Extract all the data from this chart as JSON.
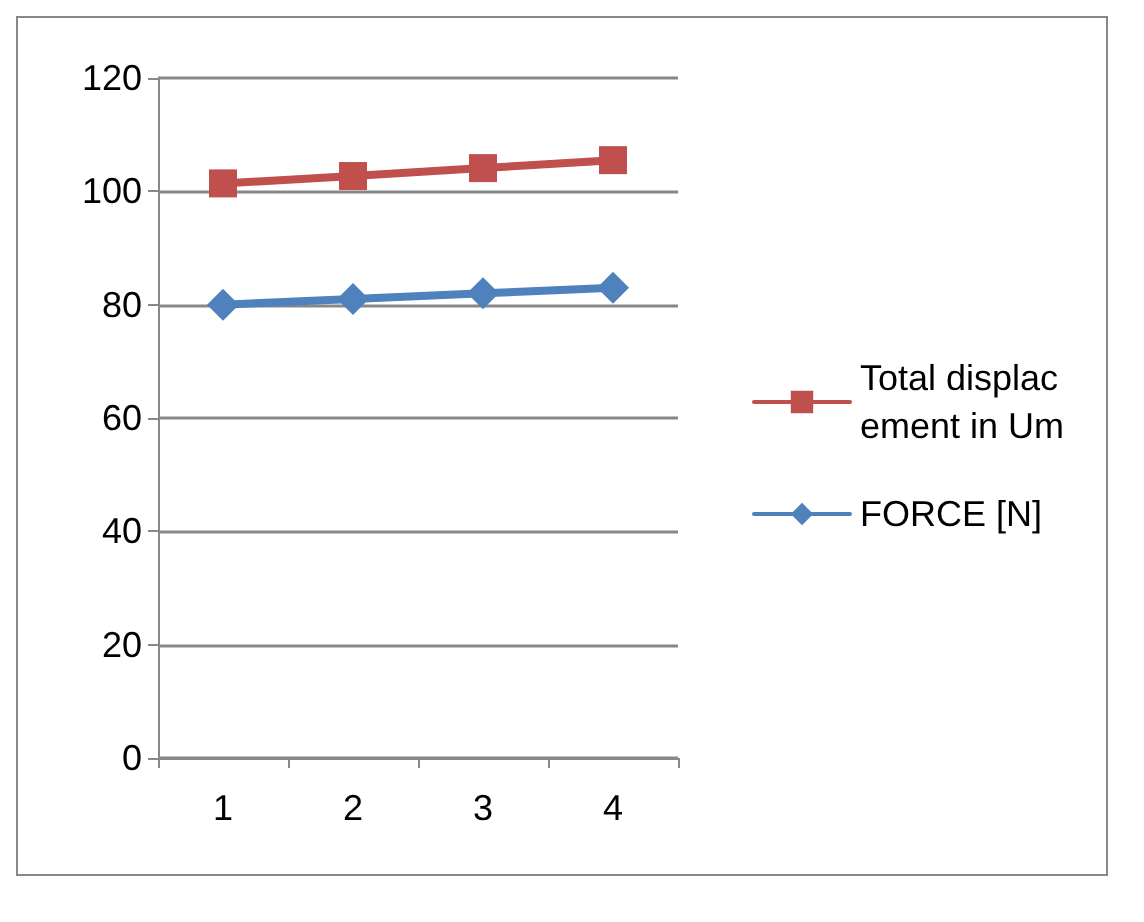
{
  "chart_data": {
    "type": "line",
    "categories": [
      "1",
      "2",
      "3",
      "4"
    ],
    "series": [
      {
        "name": "Total displacement in Um",
        "color": "#c0504d",
        "marker": "square",
        "values": [
          101.4,
          102.7,
          104.1,
          105.5
        ]
      },
      {
        "name": "FORCE [N]",
        "color": "#4f81bd",
        "marker": "diamond",
        "values": [
          80,
          81,
          82,
          83
        ]
      }
    ],
    "ylim": [
      0,
      120
    ],
    "yticks": [
      0,
      20,
      40,
      60,
      80,
      100,
      120
    ],
    "grid": "y",
    "legend": "right",
    "line_style": "solid"
  }
}
